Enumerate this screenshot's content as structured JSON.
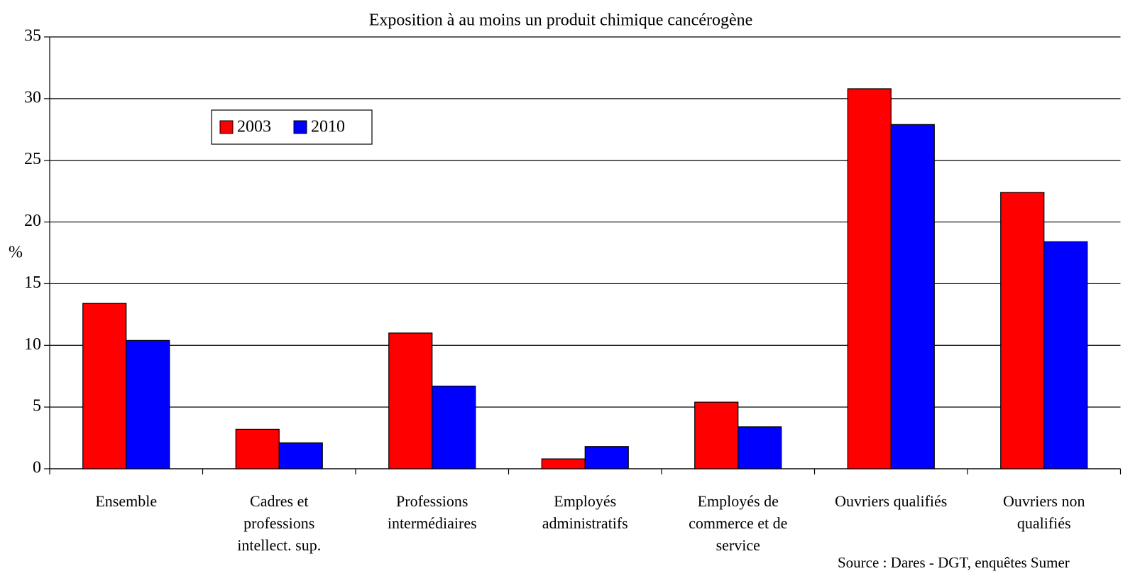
{
  "chart_data": {
    "type": "bar",
    "title": "Exposition à au moins un produit chimique cancérogène",
    "y_label": "%",
    "categories": [
      "Ensemble",
      "Cadres et\nprofessions\nintellect. sup.",
      "Professions\nintermédiaires",
      "Employés\nadministratifs",
      "Employés de\ncommerce et de\nservice",
      "Ouvriers qualifiés",
      "Ouvriers non\nqualifiés"
    ],
    "series": [
      {
        "name": "2003",
        "color": "#ff0000",
        "values": [
          13.4,
          3.2,
          11.0,
          0.8,
          5.4,
          30.8,
          22.4
        ]
      },
      {
        "name": "2010",
        "color": "#0000ff",
        "values": [
          10.4,
          2.1,
          6.7,
          1.8,
          3.4,
          27.9,
          18.4
        ]
      }
    ],
    "ylim": [
      0,
      35
    ],
    "yticks": [
      0,
      5,
      10,
      15,
      20,
      25,
      30,
      35
    ],
    "grid": true,
    "legend": "upper left",
    "source": "Source : Dares - DGT, enquêtes Sumer"
  }
}
